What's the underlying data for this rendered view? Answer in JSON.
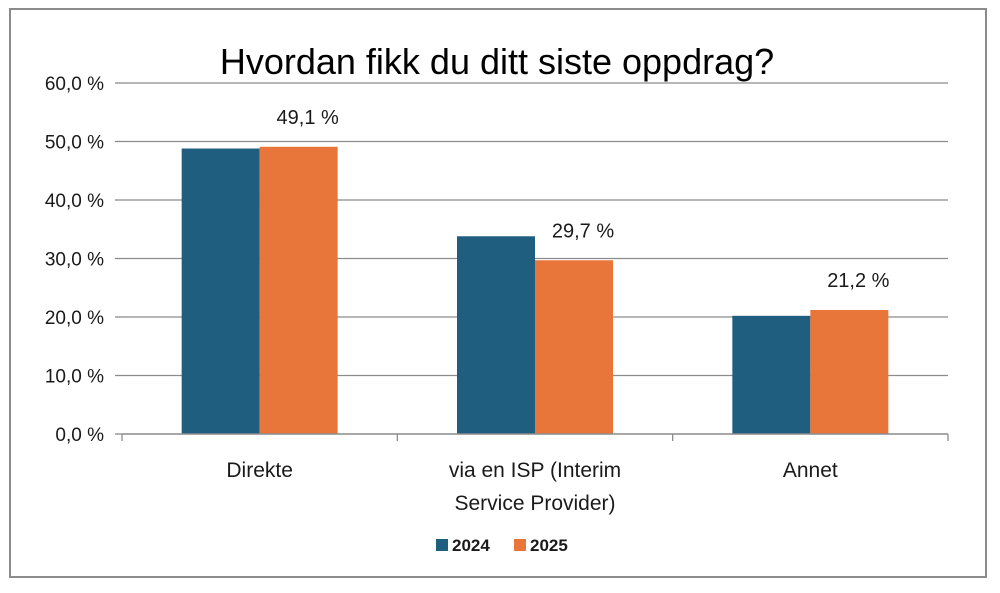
{
  "chart_data": {
    "type": "bar",
    "title": "Hvordan fikk du ditt siste oppdrag?",
    "categories": [
      [
        "Direkte"
      ],
      [
        "via en ISP (Interim",
        "Service Provider)"
      ],
      [
        "Annet"
      ]
    ],
    "series": [
      {
        "name": "2024",
        "color": "#1f5e7e",
        "values": [
          48.8,
          33.8,
          20.2
        ]
      },
      {
        "name": "2025",
        "color": "#e8753a",
        "values": [
          49.1,
          29.7,
          21.2
        ]
      }
    ],
    "data_labels": [
      {
        "category_index": 0,
        "series_index": 1,
        "text": "49,1 %"
      },
      {
        "category_index": 1,
        "series_index": 1,
        "text": "29,7 %"
      },
      {
        "category_index": 2,
        "series_index": 1,
        "text": "21,2 %"
      }
    ],
    "yticks": [
      0,
      10,
      20,
      30,
      40,
      50,
      60
    ],
    "ytick_labels": [
      "0,0 %",
      "10,0 %",
      "20,0 %",
      "30,0 %",
      "40,0 %",
      "50,0 %",
      "60,0 %"
    ],
    "ylim": [
      0,
      60
    ],
    "grid": true,
    "grid_color": "#8c8c8c",
    "legend_position": "bottom"
  }
}
